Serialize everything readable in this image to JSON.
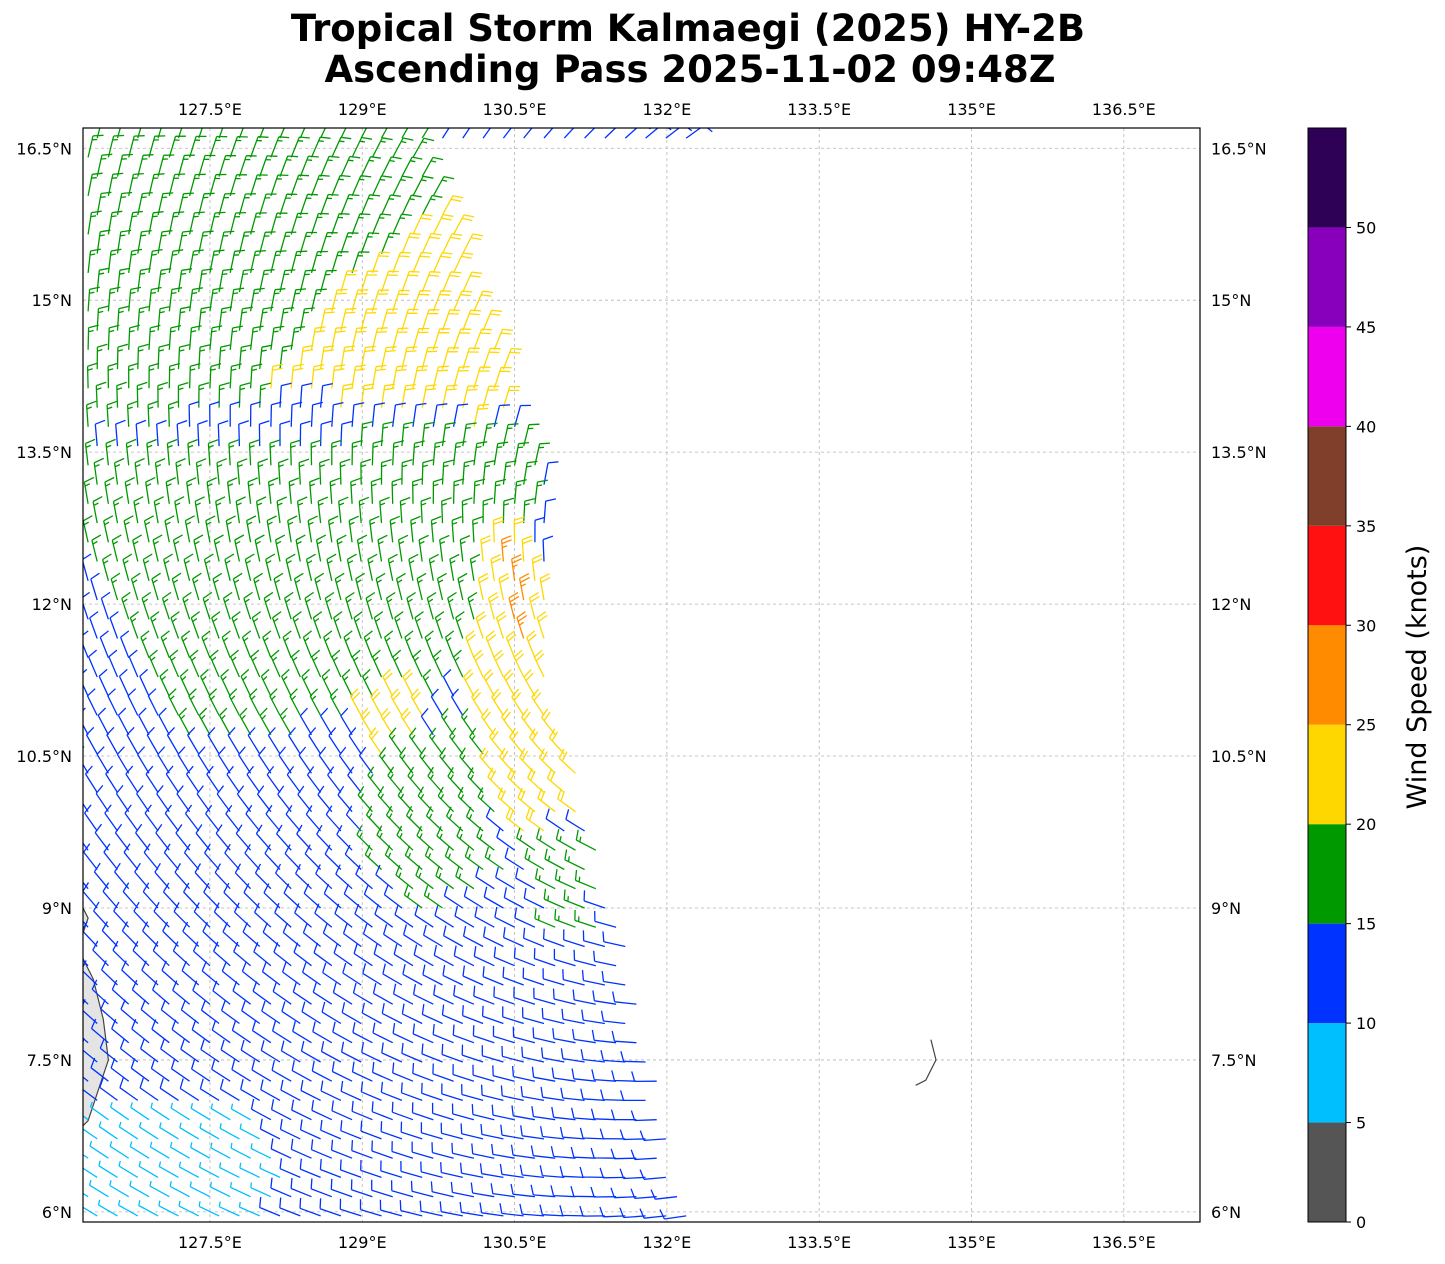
{
  "title_line1": "Tropical Storm Kalmaegi (2025) HY-2B",
  "title_line2": "Ascending Pass 2025-11-02 09:48Z",
  "colorbar": {
    "label": "Wind Speed (knots)",
    "bins": [
      {
        "from": 0,
        "to": 5,
        "color": "#555555"
      },
      {
        "from": 5,
        "to": 10,
        "color": "#00bfff"
      },
      {
        "from": 10,
        "to": 15,
        "color": "#0033ff"
      },
      {
        "from": 15,
        "to": 20,
        "color": "#009900"
      },
      {
        "from": 20,
        "to": 25,
        "color": "#ffd700"
      },
      {
        "from": 25,
        "to": 30,
        "color": "#ff8c00"
      },
      {
        "from": 30,
        "to": 35,
        "color": "#ff1111"
      },
      {
        "from": 35,
        "to": 40,
        "color": "#7f3f2a"
      },
      {
        "from": 40,
        "to": 45,
        "color": "#ee00ee"
      },
      {
        "from": 45,
        "to": 50,
        "color": "#8800bb"
      },
      {
        "from": 50,
        "to": 55,
        "color": "#2e0056"
      }
    ],
    "tick_values": [
      0,
      5,
      10,
      15,
      20,
      25,
      30,
      35,
      40,
      45,
      50
    ],
    "tick_labels": [
      "0",
      "5",
      "10",
      "15",
      "20",
      "25",
      "30",
      "35",
      "40",
      "45",
      "50"
    ]
  },
  "chart_data": {
    "type": "wind_barb_map",
    "lon_range": [
      126.25,
      137.25
    ],
    "lat_range": [
      5.9,
      16.7
    ],
    "lon_ticks": [
      127.5,
      129,
      130.5,
      132,
      133.5,
      135,
      136.5
    ],
    "lon_tick_labels": [
      "127.5°E",
      "129°E",
      "130.5°E",
      "132°E",
      "133.5°E",
      "135°E",
      "136.5°E"
    ],
    "lat_ticks": [
      6,
      7.5,
      9,
      10.5,
      12,
      13.5,
      15,
      16.5
    ],
    "lat_tick_labels": [
      "6°N",
      "7.5°N",
      "9°N",
      "10.5°N",
      "12°N",
      "13.5°N",
      "15°N",
      "16.5°N"
    ],
    "grid": true,
    "swath_edges": {
      "west": [
        [
          126.25,
          16.5
        ],
        [
          126.25,
          6.0
        ]
      ],
      "east": [
        [
          129.6,
          16.5
        ],
        [
          130.8,
          13.3
        ],
        [
          130.9,
          11.0
        ],
        [
          131.5,
          9.0
        ],
        [
          132.0,
          7.0
        ],
        [
          132.2,
          6.0
        ]
      ]
    },
    "wind_regions": [
      {
        "speed_kt": 17,
        "polygon": [
          [
            126.2,
            16.8
          ],
          [
            129.7,
            16.8
          ],
          [
            130.0,
            15.9
          ],
          [
            128.9,
            15.2
          ],
          [
            128.0,
            13.9
          ],
          [
            126.2,
            13.6
          ]
        ]
      },
      {
        "speed_kt": 22,
        "polygon": [
          [
            130.0,
            16.2
          ],
          [
            128.8,
            15.1
          ],
          [
            128.0,
            14.0
          ],
          [
            129.3,
            13.9
          ],
          [
            130.2,
            13.7
          ],
          [
            130.9,
            14.4
          ]
        ]
      },
      {
        "speed_kt": 17,
        "polygon": [
          [
            126.2,
            13.5
          ],
          [
            130.8,
            13.6
          ],
          [
            130.7,
            12.9
          ],
          [
            130.4,
            12.2
          ],
          [
            130.1,
            11.2
          ],
          [
            128.0,
            10.6
          ],
          [
            127.3,
            10.6
          ],
          [
            126.2,
            12.4
          ]
        ]
      },
      {
        "speed_kt": 22,
        "polygon": [
          [
            130.2,
            12.8
          ],
          [
            130.7,
            12.6
          ],
          [
            131.0,
            11.0
          ],
          [
            131.3,
            10.0
          ],
          [
            130.6,
            9.6
          ],
          [
            130.0,
            10.8
          ]
        ]
      },
      {
        "speed_kt": 27,
        "polygon": [
          [
            130.35,
            12.5
          ],
          [
            130.55,
            12.5
          ],
          [
            130.65,
            11.4
          ],
          [
            130.45,
            11.5
          ]
        ]
      },
      {
        "speed_kt": 22,
        "polygon": [
          [
            128.9,
            11.0
          ],
          [
            129.6,
            11.2
          ],
          [
            129.7,
            10.3
          ],
          [
            129.0,
            10.5
          ]
        ]
      },
      {
        "speed_kt": 17,
        "polygon": [
          [
            129.2,
            10.5
          ],
          [
            130.2,
            10.9
          ],
          [
            130.4,
            9.3
          ],
          [
            129.6,
            8.9
          ],
          [
            129.0,
            9.6
          ]
        ]
      },
      {
        "speed_kt": 17,
        "polygon": [
          [
            130.6,
            9.7
          ],
          [
            131.3,
            9.7
          ],
          [
            131.4,
            8.8
          ],
          [
            130.9,
            8.8
          ]
        ]
      },
      {
        "speed_kt": 8,
        "polygon": [
          [
            126.2,
            7.0
          ],
          [
            127.7,
            7.1
          ],
          [
            128.3,
            6.6
          ],
          [
            128.1,
            5.8
          ],
          [
            126.2,
            5.8
          ]
        ]
      }
    ],
    "default_speed_kt": 12,
    "land": [
      {
        "name": "mindanao-coast",
        "outline": [
          [
            126.2,
            9.1
          ],
          [
            126.3,
            8.9
          ],
          [
            126.2,
            8.6
          ],
          [
            126.35,
            8.3
          ],
          [
            126.45,
            7.9
          ],
          [
            126.5,
            7.5
          ],
          [
            126.4,
            7.2
          ],
          [
            126.3,
            6.9
          ],
          [
            126.2,
            6.8
          ]
        ]
      },
      {
        "name": "palau",
        "outline": [
          [
            134.6,
            7.7
          ],
          [
            134.65,
            7.5
          ],
          [
            134.55,
            7.3
          ],
          [
            134.45,
            7.25
          ]
        ]
      }
    ]
  }
}
